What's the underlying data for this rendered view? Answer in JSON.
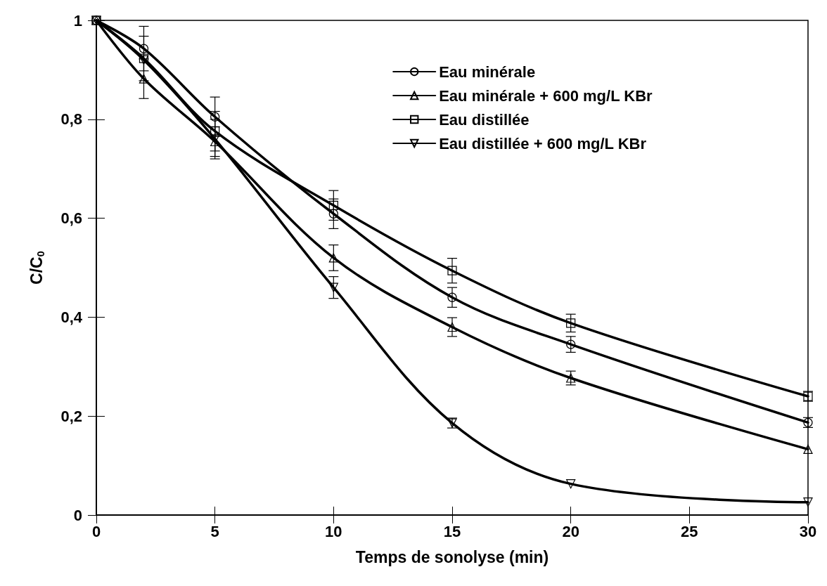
{
  "chart_data": {
    "type": "line",
    "xlabel": "Temps de sonolyse (min)",
    "ylabel": "C/C$_{0}$",
    "x": [
      0,
      2,
      5,
      10,
      15,
      20,
      30
    ],
    "series": [
      {
        "name": "Eau minérale",
        "color": "#000000",
        "marker": "circle",
        "values": [
          1,
          0.943,
          0.805,
          0.609,
          0.44,
          0.345,
          0.187
        ],
        "errors": [
          null,
          0.045,
          0.04,
          0.03,
          0.02,
          0.016,
          0.01
        ]
      },
      {
        "name": "Eau minérale + 600 mg/L KBr",
        "color": "#000000",
        "marker": "triangle",
        "values": [
          1,
          0.882,
          0.755,
          0.52,
          0.38,
          0.277,
          0.133
        ],
        "errors": [
          null,
          0.04,
          0.03,
          0.026,
          0.019,
          0.014,
          null
        ]
      },
      {
        "name": "Eau distillée",
        "color": "#000000",
        "marker": "square",
        "values": [
          1,
          0.923,
          0.776,
          0.626,
          0.494,
          0.388,
          0.24
        ],
        "errors": [
          null,
          0.045,
          0.04,
          0.03,
          0.025,
          0.018,
          0.01
        ]
      },
      {
        "name": "Eau distillée + 600 mg/L KBr",
        "color": "#000000",
        "marker": "triangle-down",
        "values": [
          1,
          0.92,
          0.76,
          0.46,
          0.186,
          0.063,
          0.026
        ],
        "errors": [
          null,
          null,
          0.04,
          0.022,
          0.01,
          null,
          null
        ]
      }
    ],
    "xlim": [
      0,
      30
    ],
    "xticks": [
      0,
      5,
      10,
      15,
      20,
      25,
      30
    ],
    "ylim": [
      0,
      1
    ],
    "yticks": [
      0,
      {
        "value": 0.2,
        "label": "0,2"
      },
      {
        "value": 0.4,
        "label": "0,4"
      },
      {
        "value": 0.6,
        "label": "0,6"
      },
      {
        "value": 0.8,
        "label": "0,8"
      },
      1
    ],
    "grid": false,
    "legend": "top right",
    "line_style": "solid"
  }
}
